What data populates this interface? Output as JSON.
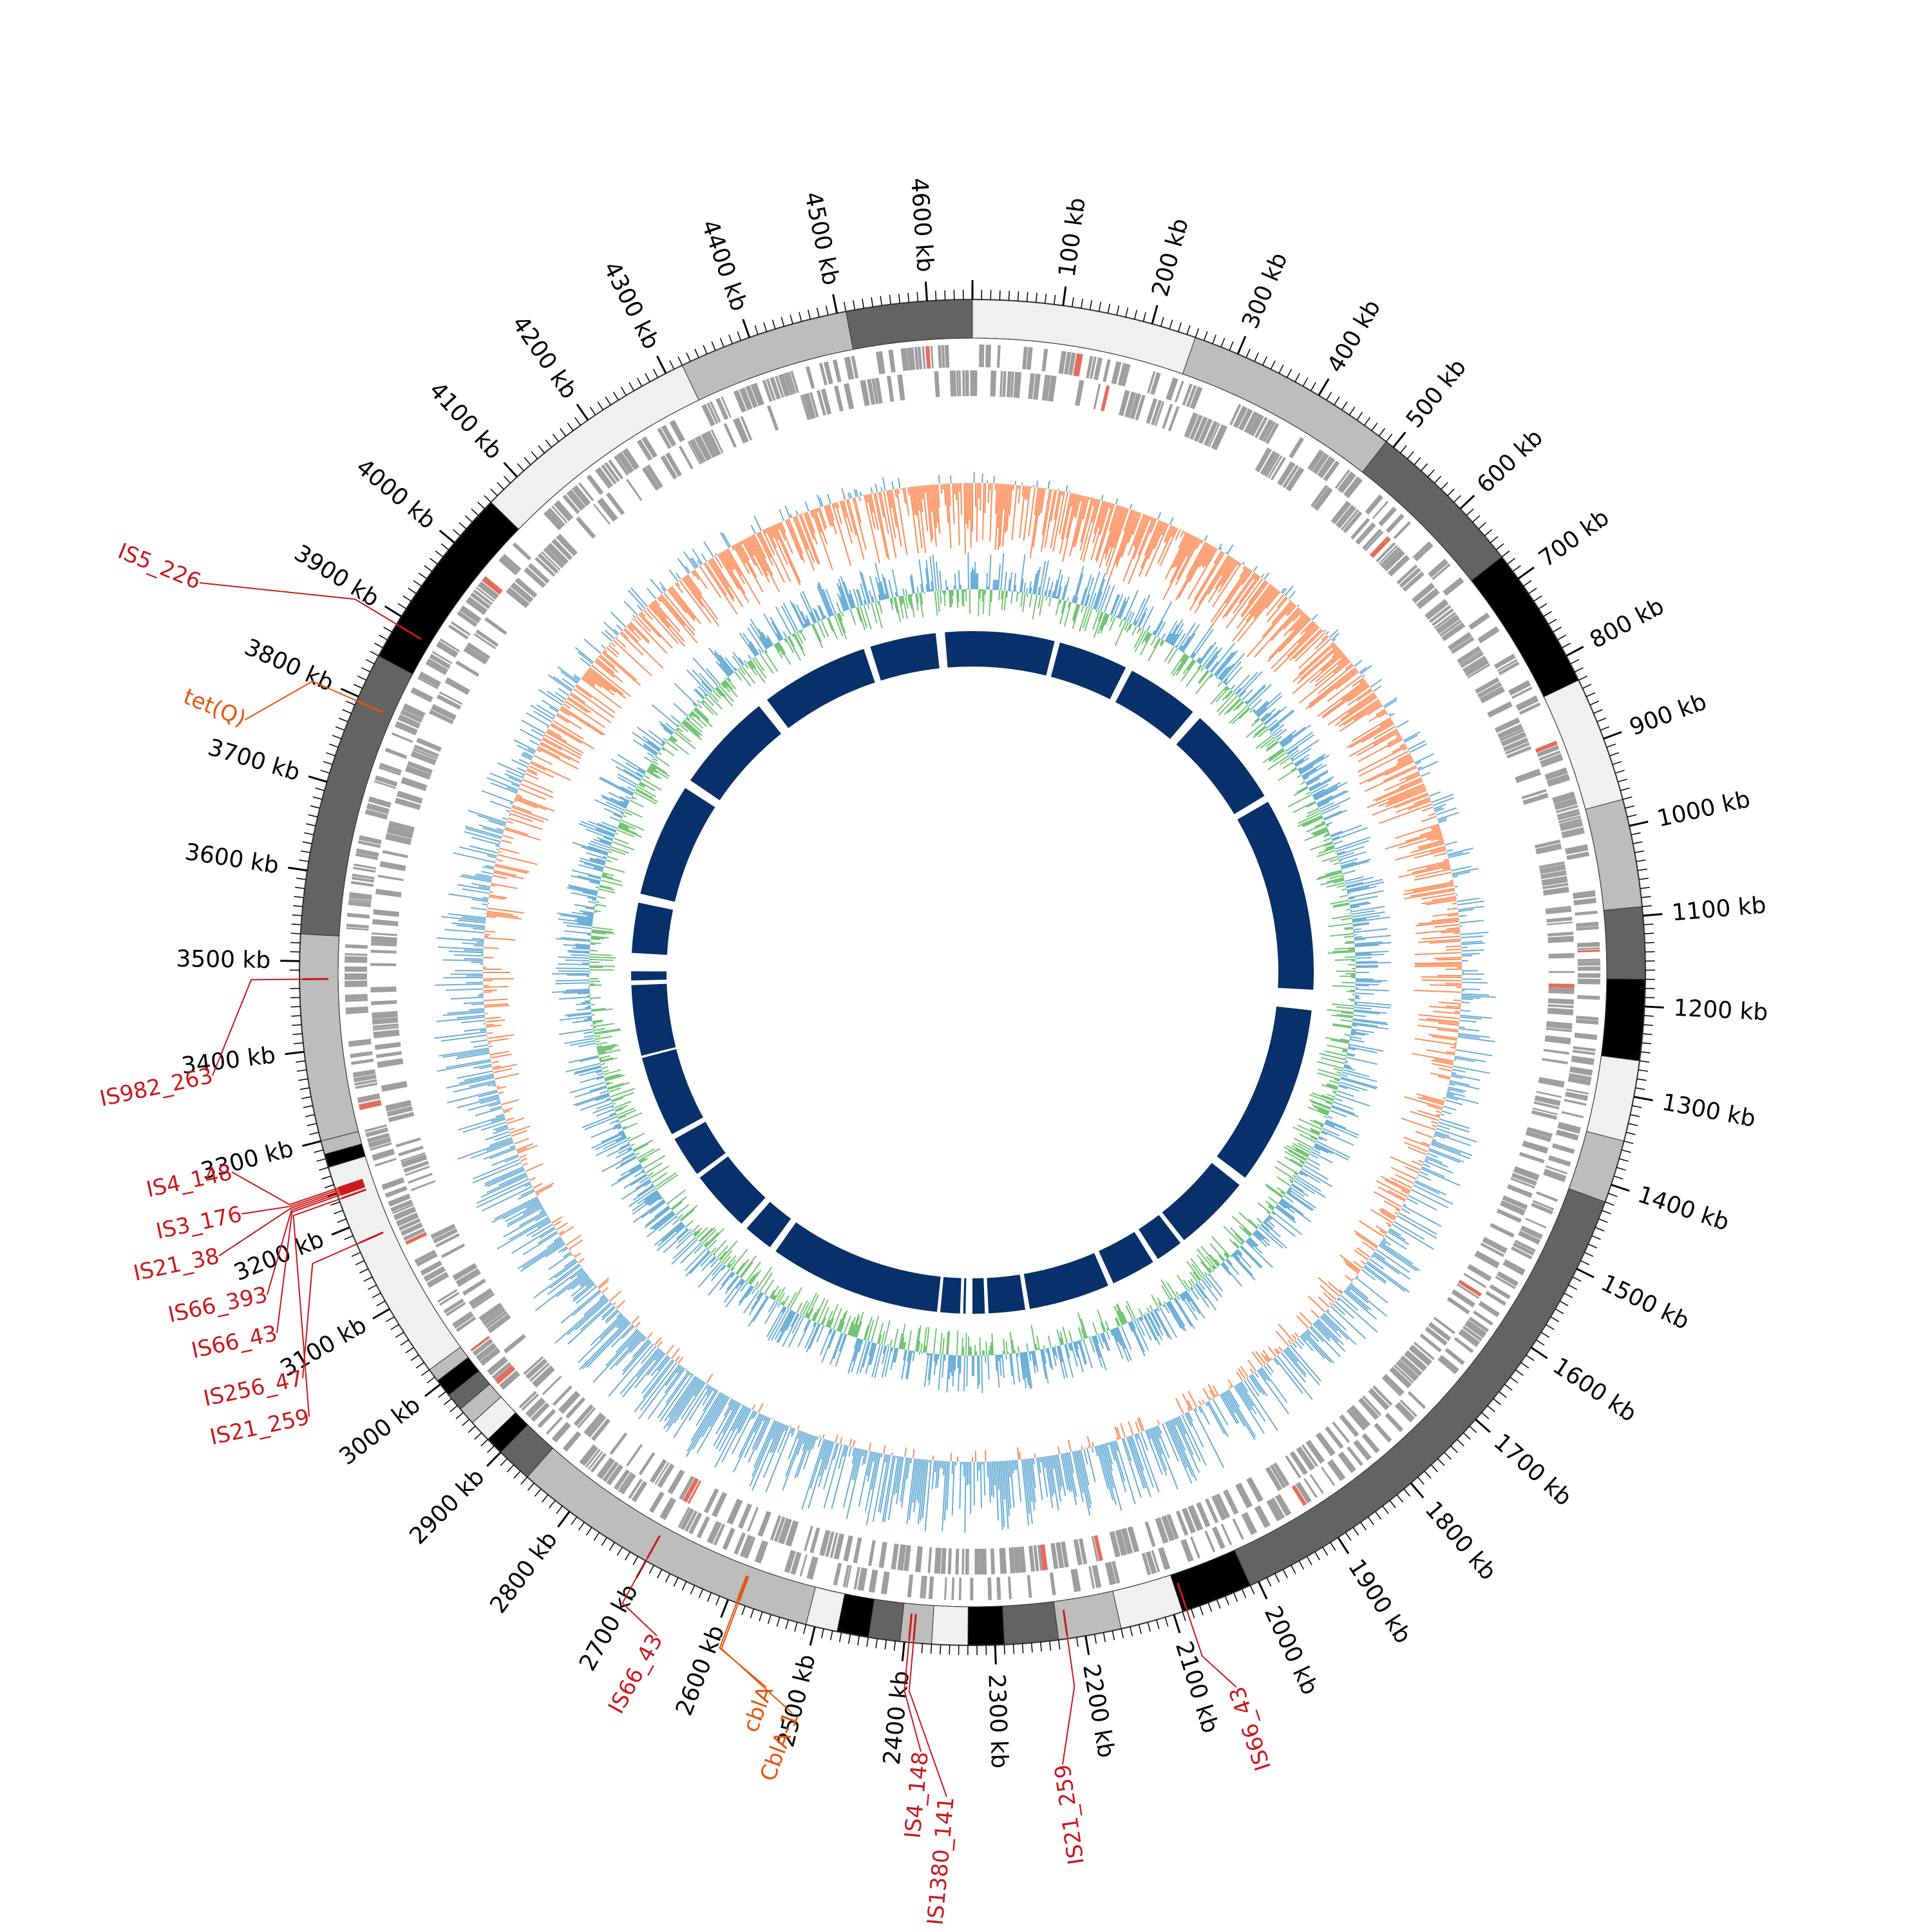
{
  "genome": {
    "length_kb": 4650,
    "unit": "kb",
    "tick_labels": [
      "100 kb",
      "200 kb",
      "300 kb",
      "400 kb",
      "500 kb",
      "600 kb",
      "700 kb",
      "800 kb",
      "900 kb",
      "1000 kb",
      "1100 kb",
      "1200 kb",
      "1300 kb",
      "1400 kb",
      "1500 kb",
      "1600 kb",
      "1700 kb",
      "1800 kb",
      "1900 kb",
      "2000 kb",
      "2100 kb",
      "2200 kb",
      "2300 kb",
      "2400 kb",
      "2500 kb",
      "2600 kb",
      "2700 kb",
      "2800 kb",
      "2900 kb",
      "3000 kb",
      "3100 kb",
      "3200 kb",
      "3300 kb",
      "3400 kb",
      "3500 kb",
      "3600 kb",
      "3700 kb",
      "3800 kb",
      "3900 kb",
      "4000 kb",
      "4100 kb",
      "4200 kb",
      "4300 kb",
      "4400 kb",
      "4500 kb",
      "4600 kb"
    ],
    "tick_positions_kb": [
      100,
      200,
      300,
      400,
      500,
      600,
      700,
      800,
      900,
      1000,
      1100,
      1200,
      1300,
      1400,
      1500,
      1600,
      1700,
      1800,
      1900,
      2000,
      2100,
      2200,
      2300,
      2400,
      2500,
      2600,
      2700,
      2800,
      2900,
      3000,
      3100,
      3200,
      3300,
      3400,
      3500,
      3600,
      3700,
      3800,
      3900,
      4000,
      4100,
      4200,
      4300,
      4400,
      4500,
      4600
    ]
  },
  "contigs": [
    {
      "start": 0,
      "end": 250,
      "color": "#f0f0f0"
    },
    {
      "start": 250,
      "end": 490,
      "color": "#bdbdbd"
    },
    {
      "start": 490,
      "end": 670,
      "color": "#636363"
    },
    {
      "start": 670,
      "end": 830,
      "color": "#000000"
    },
    {
      "start": 830,
      "end": 970,
      "color": "#f0f0f0"
    },
    {
      "start": 970,
      "end": 1090,
      "color": "#bdbdbd"
    },
    {
      "start": 1090,
      "end": 1170,
      "color": "#636363"
    },
    {
      "start": 1170,
      "end": 1260,
      "color": "#000000"
    },
    {
      "start": 1260,
      "end": 1350,
      "color": "#f0f0f0"
    },
    {
      "start": 1350,
      "end": 1420,
      "color": "#bdbdbd"
    },
    {
      "start": 1420,
      "end": 2010,
      "color": "#636363"
    },
    {
      "start": 2010,
      "end": 2090,
      "color": "#000000"
    },
    {
      "start": 2090,
      "end": 2160,
      "color": "#f0f0f0"
    },
    {
      "start": 2160,
      "end": 2230,
      "color": "#bdbdbd"
    },
    {
      "start": 2230,
      "end": 2290,
      "color": "#636363"
    },
    {
      "start": 2290,
      "end": 2330,
      "color": "#000000"
    },
    {
      "start": 2330,
      "end": 2370,
      "color": "#f0f0f0"
    },
    {
      "start": 2370,
      "end": 2405,
      "color": "#bdbdbd"
    },
    {
      "start": 2405,
      "end": 2440,
      "color": "#636363"
    },
    {
      "start": 2440,
      "end": 2475,
      "color": "#000000"
    },
    {
      "start": 2475,
      "end": 2510,
      "color": "#f0f0f0"
    },
    {
      "start": 2510,
      "end": 2860,
      "color": "#bdbdbd"
    },
    {
      "start": 2860,
      "end": 2900,
      "color": "#636363"
    },
    {
      "start": 2900,
      "end": 2920,
      "color": "#000000"
    },
    {
      "start": 2920,
      "end": 2945,
      "color": "#f0f0f0"
    },
    {
      "start": 2945,
      "end": 2965,
      "color": "#bdbdbd"
    },
    {
      "start": 2965,
      "end": 2985,
      "color": "#636363"
    },
    {
      "start": 2985,
      "end": 3005,
      "color": "#000000"
    },
    {
      "start": 3005,
      "end": 3020,
      "color": "#bdbdbd"
    },
    {
      "start": 3020,
      "end": 3270,
      "color": "#f0f0f0"
    },
    {
      "start": 3270,
      "end": 3285,
      "color": "#000000"
    },
    {
      "start": 3285,
      "end": 3300,
      "color": "#bdbdbd"
    },
    {
      "start": 3300,
      "end": 3530,
      "color": "#bdbdbd"
    },
    {
      "start": 3530,
      "end": 3850,
      "color": "#636363"
    },
    {
      "start": 3850,
      "end": 4060,
      "color": "#000000"
    },
    {
      "start": 4060,
      "end": 4320,
      "color": "#f0f0f0"
    },
    {
      "start": 4320,
      "end": 4510,
      "color": "#bdbdbd"
    },
    {
      "start": 4510,
      "end": 4650,
      "color": "#636363"
    }
  ],
  "annotations": [
    {
      "label": "IS5_226",
      "position_kb": 3890,
      "color": "#cb181d"
    },
    {
      "label": "tet(Q)",
      "position_kb": 3795,
      "color": "#e6550d"
    },
    {
      "label": "IS982_263",
      "position_kb": 3480,
      "color": "#cb181d"
    },
    {
      "label": "IS4_148",
      "position_kb": 3245,
      "color": "#cb181d"
    },
    {
      "label": "IS3_176",
      "position_kb": 3243,
      "color": "#cb181d"
    },
    {
      "label": "IS21_38",
      "position_kb": 3241,
      "color": "#cb181d"
    },
    {
      "label": "IS66_393",
      "position_kb": 3239,
      "color": "#cb181d"
    },
    {
      "label": "IS66_43",
      "position_kb": 3237,
      "color": "#cb181d"
    },
    {
      "label": "IS256_47",
      "position_kb": 3180,
      "color": "#cb181d"
    },
    {
      "label": "IS21_259",
      "position_kb": 3233,
      "color": "#cb181d"
    },
    {
      "label": "IS66_43",
      "position_kb": 2700,
      "color": "#cb181d"
    },
    {
      "label": "cblA",
      "position_kb": 2590,
      "color": "#e6550d"
    },
    {
      "label": "CblA-1",
      "position_kb": 2588,
      "color": "#e6550d"
    },
    {
      "label": "IS4_148",
      "position_kb": 2395,
      "color": "#cb181d"
    },
    {
      "label": "IS1380_141",
      "position_kb": 2390,
      "color": "#cb181d"
    },
    {
      "label": "IS21_259",
      "position_kb": 2220,
      "color": "#cb181d"
    },
    {
      "label": "IS66_43",
      "position_kb": 2085,
      "color": "#cb181d"
    }
  ],
  "tracks": {
    "gc_skew_colors": {
      "positive": "#6baed6",
      "negative": "#fc8d59"
    },
    "gc_content_colors": {
      "high": "#6baed6",
      "low": "#74c476"
    },
    "homology_color": "#08306b",
    "homology_gaps_kb": [
      [
        180,
        192
      ],
      [
        345,
        360
      ],
      [
        520,
        540
      ],
      [
        760,
        775
      ],
      [
        1200,
        1245
      ],
      [
        1640,
        1660
      ],
      [
        1830,
        1840
      ],
      [
        1900,
        1912
      ],
      [
        2010,
        2022
      ],
      [
        2200,
        2210
      ],
      [
        2290,
        2298
      ],
      [
        2325,
        2340
      ],
      [
        2345,
        2352
      ],
      [
        2395,
        2402
      ],
      [
        2780,
        2795
      ],
      [
        2860,
        2875
      ],
      [
        3010,
        3020
      ],
      [
        3110,
        3122
      ],
      [
        3300,
        3305
      ],
      [
        3460,
        3470
      ],
      [
        3490,
        3530
      ],
      [
        3640,
        3660
      ],
      [
        3910,
        3930
      ],
      [
        4150,
        4172
      ],
      [
        4410,
        4425
      ],
      [
        4570,
        4590
      ]
    ]
  }
}
